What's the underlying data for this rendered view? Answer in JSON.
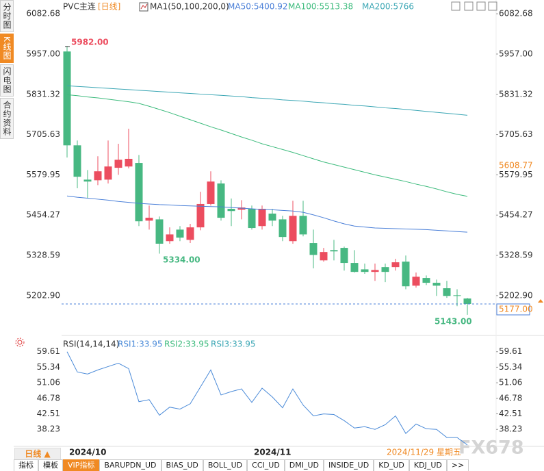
{
  "sidebar_tabs": [
    "分时图",
    "K线图",
    "闪电图",
    "合约资料"
  ],
  "chart_data": [
    {
      "type": "candlestick",
      "title": "PVC主连",
      "period": "[日线]",
      "indicator": "MA1(50,100,200,0)",
      "categories": [
        null,
        "2024/10",
        null,
        null,
        null,
        null,
        null,
        null,
        null,
        null,
        null,
        null,
        null,
        null,
        null,
        null,
        null,
        null,
        null,
        "2024/11",
        null,
        null,
        null,
        null,
        null,
        null,
        null,
        null,
        null,
        null,
        null,
        null,
        null,
        null,
        null,
        null,
        null,
        null,
        null,
        null
      ],
      "ohlc": [
        [
          5965,
          5982,
          5634,
          5672
        ],
        [
          5672,
          5687,
          5538,
          5574
        ],
        [
          5565,
          5595,
          5506,
          5559
        ],
        [
          5563,
          5638,
          5548,
          5591
        ],
        [
          5565,
          5687,
          5553,
          5606
        ],
        [
          5602,
          5677,
          5580,
          5627
        ],
        [
          5606,
          5724,
          5600,
          5630
        ],
        [
          5617,
          5642,
          5420,
          5435
        ],
        [
          5437,
          5484,
          5409,
          5446
        ],
        [
          5441,
          5450,
          5334,
          5365
        ],
        [
          5373,
          5416,
          5365,
          5394
        ],
        [
          5409,
          5420,
          5373,
          5384
        ],
        [
          5377,
          5427,
          5367,
          5416
        ],
        [
          5416,
          5527,
          5407,
          5489
        ],
        [
          5489,
          5591,
          5484,
          5559
        ],
        [
          5553,
          5563,
          5437,
          5446
        ],
        [
          5474,
          5506,
          5420,
          5467
        ],
        [
          5471,
          5501,
          5441,
          5478
        ],
        [
          5474,
          5484,
          5409,
          5414
        ],
        [
          5420,
          5484,
          5409,
          5474
        ],
        [
          5459,
          5474,
          5420,
          5437
        ],
        [
          5441,
          5452,
          5373,
          5386
        ],
        [
          5373,
          5499,
          5365,
          5452
        ],
        [
          5452,
          5499,
          5388,
          5394
        ],
        [
          5367,
          5409,
          5288,
          5330
        ],
        [
          5313,
          5352,
          5309,
          5339
        ],
        [
          5345,
          5377,
          5313,
          5341
        ],
        [
          5352,
          5356,
          5281,
          5305
        ],
        [
          5305,
          5345,
          5275,
          5277
        ],
        [
          5285,
          5303,
          5271,
          5277
        ],
        [
          5277,
          5303,
          5249,
          5283
        ],
        [
          5292,
          5303,
          5245,
          5277
        ],
        [
          5292,
          5318,
          5281,
          5307
        ],
        [
          5309,
          5328,
          5223,
          5232
        ],
        [
          5234,
          5275,
          5228,
          5262
        ],
        [
          5258,
          5266,
          5236,
          5243
        ],
        [
          5243,
          5253,
          5202,
          5234
        ],
        [
          5226,
          5249,
          5196,
          5202
        ],
        [
          5204,
          5223,
          5170,
          5202
        ],
        [
          5194,
          5196,
          5143,
          5177
        ]
      ],
      "up_color": "#ec4d5f",
      "down_color": "#47b882",
      "series": [
        {
          "name": "MA50:5400.92",
          "color": "#4a7fd8",
          "values": [
            5514,
            5510,
            5507,
            5504,
            5501,
            5497,
            5494,
            5491,
            5489,
            5487,
            5486,
            5484,
            5483,
            5482,
            5481,
            5480,
            5478,
            5476,
            5474,
            5472,
            5471,
            5469,
            5467,
            5463,
            5455,
            5446,
            5436,
            5427,
            5420,
            5417,
            5414,
            5413,
            5412,
            5411,
            5410,
            5409,
            5407,
            5405,
            5403,
            5401
          ]
        },
        {
          "name": "MA100:5513.38",
          "color": "#3dbb7d",
          "values": [
            5830,
            5827,
            5823,
            5820,
            5816,
            5812,
            5808,
            5803,
            5794,
            5784,
            5774,
            5763,
            5752,
            5741,
            5730,
            5720,
            5709,
            5698,
            5688,
            5677,
            5668,
            5659,
            5650,
            5640,
            5630,
            5620,
            5612,
            5604,
            5596,
            5588,
            5580,
            5573,
            5566,
            5559,
            5551,
            5544,
            5536,
            5527,
            5519,
            5513
          ]
        },
        {
          "name": "MA200:5766",
          "color": "#3aa6b4",
          "values": [
            5858,
            5856,
            5854,
            5852,
            5850,
            5848,
            5846,
            5844,
            5842,
            5840,
            5838,
            5836,
            5834,
            5832,
            5830,
            5828,
            5826,
            5824,
            5821,
            5819,
            5817,
            5814,
            5812,
            5810,
            5807,
            5805,
            5802,
            5800,
            5797,
            5795,
            5792,
            5789,
            5787,
            5784,
            5781,
            5778,
            5775,
            5772,
            5769,
            5766
          ]
        }
      ],
      "ylim": [
        5100,
        6115
      ],
      "yticks": [
        6082.68,
        {
          "value": 5957,
          "label": "5957.00"
        },
        5831.32,
        5705.63,
        5579.95,
        5454.27,
        5328.59,
        {
          "value": 5202.9,
          "label": "5202.90"
        }
      ],
      "annotations": [
        "5982.00",
        "5334.00",
        "5143.00"
      ],
      "price_markers": [
        {
          "value": 5608.77,
          "label": "5608.77"
        },
        {
          "value": 5177,
          "label": "5177.00"
        }
      ]
    },
    {
      "type": "line",
      "title": "RSI(14,14,14)",
      "series": [
        {
          "name": "RSI1:33.95",
          "color": "#4a8ad8",
          "values": [
            59.61,
            54.03,
            53.47,
            54.59,
            55.52,
            56.45,
            54.96,
            45.85,
            46.41,
            42.13,
            44.36,
            43.81,
            45.29,
            49.94,
            54.59,
            47.71,
            48.64,
            49.38,
            45.66,
            49.57,
            47.15,
            44.18,
            49.38,
            44.92,
            41.95,
            42.5,
            42.32,
            40.64,
            38.6,
            38.97,
            38.23,
            39.53,
            41.95,
            37.11,
            39.71,
            38.41,
            38.23,
            36.0,
            36.0,
            33.95
          ]
        }
      ],
      "legend_extra": [
        {
          "name": "RSI2:33.95",
          "color": "#3dbb7d"
        },
        {
          "name": "RSI3:33.95",
          "color": "#3aa6b4"
        }
      ],
      "ylim": [
        33,
        62.2
      ],
      "yticks": [
        59.61,
        55.34,
        51.06,
        46.78,
        42.51,
        38.23
      ]
    }
  ],
  "footer": {
    "period_button": "日线 ▲",
    "date": "2024/11/29 星期五",
    "watermark": "FX678"
  },
  "tabs": [
    "指标",
    "模板",
    "VIP指标",
    "BARUPDN_UD",
    "BIAS_UD",
    "BOLL_UD",
    "CCI_UD",
    "DMI_UD",
    "INSIDE_UD",
    "KD_UD",
    "KDJ_UD",
    ">>"
  ]
}
